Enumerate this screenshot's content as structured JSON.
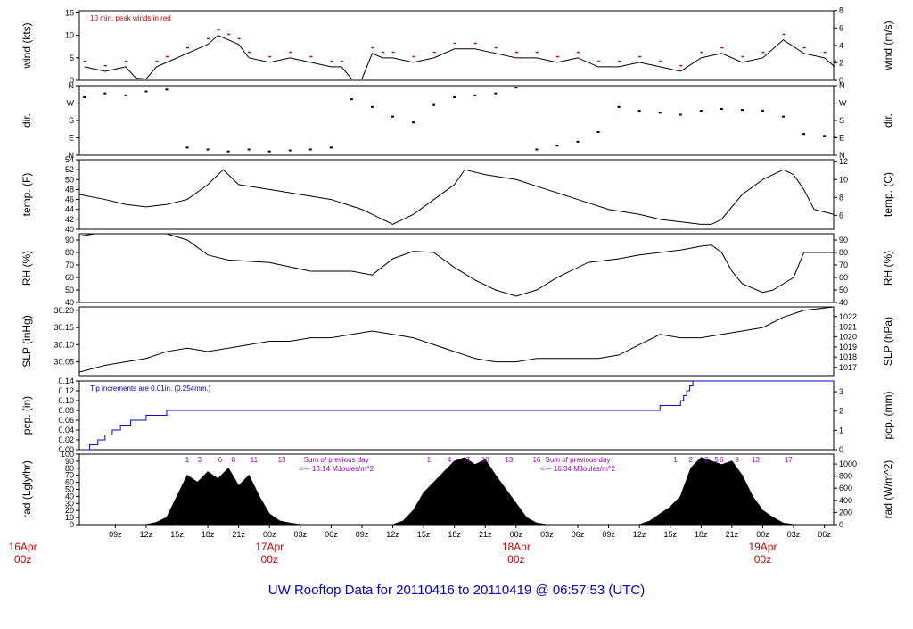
{
  "footer": "UW Rooftop Data for 20110416  to  20110419 @ 06:57:53  (UTC)",
  "colors": {
    "trace": "#000000",
    "peak": "#cc0000",
    "pcp": "#0000cc",
    "note": "#9900cc",
    "day": "#cc0000",
    "footer": "#0000cc"
  },
  "chart_data": {
    "type": "line",
    "x_ticks": [
      "09z",
      "12z",
      "15z",
      "18z",
      "21z",
      "00z",
      "03z",
      "06z",
      "09z",
      "12z",
      "15z",
      "18z",
      "21z",
      "00z",
      "03z",
      "06z",
      "09z",
      "12z",
      "15z",
      "18z",
      "21z",
      "00z",
      "03z",
      "06z"
    ],
    "day_labels": [
      {
        "date": "16Apr",
        "hour": "00z"
      },
      {
        "date": "17Apr",
        "hour": "00z"
      },
      {
        "date": "18Apr",
        "hour": "00z"
      },
      {
        "date": "19Apr",
        "hour": "00z"
      }
    ],
    "x_range_hours": [
      5.5,
      78.9
    ],
    "panels": [
      {
        "id": "wind",
        "ylabel_left": "wind (kts)",
        "ylabel_right": "wind (m/s)",
        "ylim": [
          0,
          15.5
        ],
        "left_ticks": [
          "0",
          "5",
          "10",
          "15"
        ],
        "left_tick_values": [
          0,
          5,
          10,
          15
        ],
        "right_ticks": [
          "0",
          "2",
          "4",
          "6",
          "8"
        ],
        "right_tick_values": [
          0,
          3.89,
          7.78,
          11.66,
          15.55
        ],
        "annotation": "10 min. peak winds in red",
        "series": [
          {
            "x": [
              6,
              8,
              10,
              11,
              12,
              13,
              14,
              16,
              18,
              19,
              20,
              21,
              22,
              24,
              26,
              28,
              30,
              31,
              32,
              33,
              34,
              35,
              36,
              38,
              40,
              42,
              44,
              46,
              48,
              50,
              52,
              54,
              56,
              58,
              60,
              62,
              64,
              66,
              68,
              70,
              72,
              74,
              76,
              78,
              79
            ],
            "y": [
              3,
              2,
              3,
              0.5,
              0.3,
              3,
              4,
              6,
              8,
              10,
              9,
              8,
              5,
              4,
              5,
              4,
              3,
              3,
              0.3,
              0.3,
              6,
              5,
              5,
              4,
              5,
              7,
              7,
              6,
              5,
              5,
              4,
              5,
              3,
              3,
              4,
              3,
              2,
              5,
              6,
              4,
              5,
              9,
              6,
              5,
              3
            ]
          }
        ]
      },
      {
        "id": "dir",
        "ylabel_left": "dir.",
        "ylabel_right": "dir.",
        "ylim": [
          0,
          360
        ],
        "left_ticks": [
          "N",
          "E",
          "S",
          "W",
          "N"
        ],
        "left_tick_values": [
          0,
          90,
          180,
          270,
          360
        ],
        "right_ticks": [
          "N",
          "E",
          "S",
          "W",
          "N"
        ],
        "right_tick_values": [
          0,
          90,
          180,
          270,
          360
        ],
        "series": [
          {
            "x": [
              6,
              8,
              10,
              12,
              14,
              16,
              18,
              20,
              22,
              24,
              26,
              28,
              30,
              32,
              34,
              36,
              38,
              40,
              42,
              44,
              46,
              48,
              50,
              52,
              54,
              56,
              58,
              60,
              62,
              64,
              66,
              68,
              70,
              72,
              74,
              76,
              78,
              79
            ],
            "y": [
              300,
              320,
              310,
              330,
              340,
              40,
              30,
              20,
              30,
              20,
              25,
              30,
              40,
              290,
              250,
              200,
              170,
              260,
              300,
              310,
              320,
              350,
              30,
              50,
              70,
              120,
              250,
              230,
              220,
              210,
              230,
              240,
              235,
              230,
              200,
              110,
              100,
              95
            ]
          }
        ]
      },
      {
        "id": "temp",
        "ylabel_left": "temp. (F)",
        "ylabel_right": "temp. (C)",
        "ylim": [
          40,
          54
        ],
        "left_ticks": [
          "40",
          "42",
          "44",
          "46",
          "48",
          "50",
          "52",
          "54"
        ],
        "left_tick_values": [
          40,
          42,
          44,
          46,
          48,
          50,
          52,
          54
        ],
        "right_ticks": [
          "6",
          "8",
          "10",
          "12"
        ],
        "right_tick_values": [
          42.8,
          46.4,
          50,
          53.6
        ],
        "series": [
          {
            "x": [
              5.5,
              8,
              10,
              12,
              14,
              16,
              18,
              19.5,
              21,
              24,
              27,
              30,
              33,
              35,
              36,
              38,
              40,
              42,
              43,
              45,
              48,
              51,
              54,
              57,
              60,
              62,
              64,
              66,
              67,
              68,
              70,
              72,
              74,
              75,
              76,
              77,
              78.9
            ],
            "y": [
              47,
              46,
              45,
              44.5,
              45,
              46,
              49,
              52,
              49,
              48,
              47,
              46,
              44,
              42,
              41,
              43,
              46,
              49,
              52,
              51,
              50,
              48,
              46,
              44,
              43,
              42,
              41.5,
              41,
              41,
              42,
              47,
              50,
              52,
              51,
              48,
              44,
              43
            ]
          }
        ]
      },
      {
        "id": "rh",
        "ylabel_left": "RH (%)",
        "ylabel_right": "RH (%)",
        "ylim": [
          40,
          95
        ],
        "left_ticks": [
          "40",
          "50",
          "60",
          "70",
          "80",
          "90"
        ],
        "left_tick_values": [
          40,
          50,
          60,
          70,
          80,
          90
        ],
        "right_ticks": [
          "40",
          "50",
          "60",
          "70",
          "80",
          "90"
        ],
        "right_tick_values": [
          40,
          50,
          60,
          70,
          80,
          90
        ],
        "series": [
          {
            "x": [
              5.5,
              7,
              10,
              14,
              16,
              18,
              20,
              24,
              28,
              32,
              34,
              36,
              38,
              40,
              42,
              44,
              46,
              48,
              50,
              52,
              55,
              58,
              60,
              62,
              64,
              66,
              67,
              68,
              69,
              70,
              72,
              73,
              75,
              76,
              78.9
            ],
            "y": [
              93,
              95,
              95,
              95,
              90,
              78,
              74,
              72,
              65,
              65,
              62,
              75,
              81,
              80,
              68,
              58,
              50,
              45,
              50,
              60,
              72,
              75,
              78,
              80,
              82,
              85,
              86,
              80,
              65,
              55,
              48,
              50,
              60,
              80,
              80
            ]
          }
        ]
      },
      {
        "id": "slp",
        "ylabel_left": "SLP (inHg)",
        "ylabel_right": "SLP (hPa)",
        "ylim": [
          30.01,
          30.21
        ],
        "left_ticks": [
          "30.05",
          "30.10",
          "30.15",
          "30.20"
        ],
        "left_tick_values": [
          30.05,
          30.1,
          30.15,
          30.2
        ],
        "right_ticks": [
          "1017",
          "1018",
          "1019",
          "1020",
          "1021",
          "1022"
        ],
        "right_tick_values": [
          30.034,
          30.064,
          30.093,
          30.123,
          30.152,
          30.182
        ],
        "series": [
          {
            "x": [
              5.5,
              8,
              10,
              12,
              14,
              16,
              18,
              20,
              22,
              24,
              26,
              28,
              30,
              32,
              34,
              36,
              38,
              40,
              42,
              44,
              46,
              48,
              50,
              52,
              54,
              56,
              58,
              60,
              62,
              64,
              66,
              68,
              70,
              72,
              74,
              76,
              78.9
            ],
            "y": [
              30.02,
              30.04,
              30.05,
              30.06,
              30.08,
              30.09,
              30.08,
              30.09,
              30.1,
              30.11,
              30.11,
              30.12,
              30.12,
              30.13,
              30.14,
              30.13,
              30.12,
              30.1,
              30.08,
              30.06,
              30.05,
              30.05,
              30.06,
              30.06,
              30.06,
              30.06,
              30.07,
              30.1,
              30.13,
              30.12,
              30.12,
              30.13,
              30.14,
              30.15,
              30.18,
              30.2,
              30.21
            ]
          }
        ]
      },
      {
        "id": "pcp",
        "ylabel_left": "pcp. (in)",
        "ylabel_right": "pcp. (mm)",
        "ylim": [
          0,
          0.14
        ],
        "left_ticks": [
          "0.00",
          "0.02",
          "0.04",
          "0.06",
          "0.08",
          "0.10",
          "0.12",
          "0.14"
        ],
        "left_tick_values": [
          0,
          0.02,
          0.04,
          0.06,
          0.08,
          0.1,
          0.12,
          0.14
        ],
        "right_ticks": [
          "0",
          "1",
          "2",
          "3"
        ],
        "right_tick_values": [
          0,
          0.0394,
          0.0787,
          0.1181
        ],
        "annotation": "Tip increments are 0.01in. (0.254mm.)",
        "step": true,
        "series": [
          {
            "x": [
              5.5,
              6.5,
              7.3,
              8,
              8.7,
              9.5,
              10.5,
              12,
              14,
              32,
              40,
              45,
              55,
              62,
              64,
              64.3,
              64.6,
              64.9,
              65.2,
              78.9
            ],
            "y": [
              0,
              0.01,
              0.02,
              0.03,
              0.04,
              0.05,
              0.06,
              0.07,
              0.08,
              0.08,
              0.08,
              0.08,
              0.08,
              0.09,
              0.1,
              0.11,
              0.12,
              0.13,
              0.14,
              0.14
            ]
          }
        ]
      },
      {
        "id": "rad",
        "ylabel_left": "rad (Lgly/hr)",
        "ylabel_right": "rad (W/m^2)",
        "ylim": [
          0,
          100
        ],
        "left_ticks": [
          "0",
          "10",
          "20",
          "30",
          "40",
          "50",
          "60",
          "70",
          "80",
          "90",
          "100"
        ],
        "left_tick_values": [
          0,
          10,
          20,
          30,
          40,
          50,
          60,
          70,
          80,
          90,
          100
        ],
        "right_ticks": [
          "0",
          "200",
          "400",
          "600",
          "800",
          "1000"
        ],
        "right_tick_values": [
          0,
          17.2,
          34.4,
          51.6,
          68.8,
          86
        ],
        "filled": true,
        "series": [
          {
            "x": [
              12,
              13,
              14,
              15,
              16,
              17,
              18,
              19,
              20,
              21,
              22,
              23,
              24,
              25,
              26,
              27,
              36,
              37,
              38,
              39,
              40,
              41,
              42,
              43,
              44,
              45,
              46,
              47,
              48,
              49,
              50,
              51,
              60,
              61,
              62,
              63,
              64,
              65,
              66,
              67,
              68,
              69,
              70,
              71,
              72,
              73,
              74,
              75
            ],
            "y": [
              0,
              3,
              10,
              40,
              70,
              60,
              75,
              65,
              80,
              55,
              70,
              40,
              15,
              5,
              2,
              0,
              0,
              5,
              20,
              45,
              60,
              75,
              90,
              95,
              85,
              92,
              70,
              50,
              30,
              10,
              2,
              0,
              0,
              5,
              15,
              25,
              40,
              80,
              95,
              90,
              85,
              90,
              70,
              40,
              20,
              10,
              2,
              0
            ]
          }
        ],
        "hour_marks": [
          {
            "label": "1",
            "x": 16
          },
          {
            "label": "3",
            "x": 17.2
          },
          {
            "label": "6",
            "x": 19.2
          },
          {
            "label": "8",
            "x": 20.5
          },
          {
            "label": "11",
            "x": 22.5
          },
          {
            "label": "13",
            "x": 25.2
          },
          {
            "label": "1",
            "x": 39.5
          },
          {
            "label": "4",
            "x": 41.5
          },
          {
            "label": "7",
            "x": 43.3
          },
          {
            "label": "10",
            "x": 45
          },
          {
            "label": "13",
            "x": 47.3
          },
          {
            "label": "16",
            "x": 50
          },
          {
            "label": "1",
            "x": 63.5
          },
          {
            "label": "2",
            "x": 65
          },
          {
            "label": "3",
            "x": 66.5
          },
          {
            "label": "5",
            "x": 67.5
          },
          {
            "label": "6",
            "x": 68
          },
          {
            "label": "9",
            "x": 69.5
          },
          {
            "label": "13",
            "x": 71.3
          },
          {
            "label": "17",
            "x": 74.5
          }
        ],
        "notes": [
          {
            "line1": "Sum of previous day",
            "line2": "<--- 13.14 MJoules/m^2"
          },
          {
            "line1": "Sum of previous day",
            "line2": "<--- 16.34 MJoules/m^2"
          }
        ]
      }
    ]
  }
}
